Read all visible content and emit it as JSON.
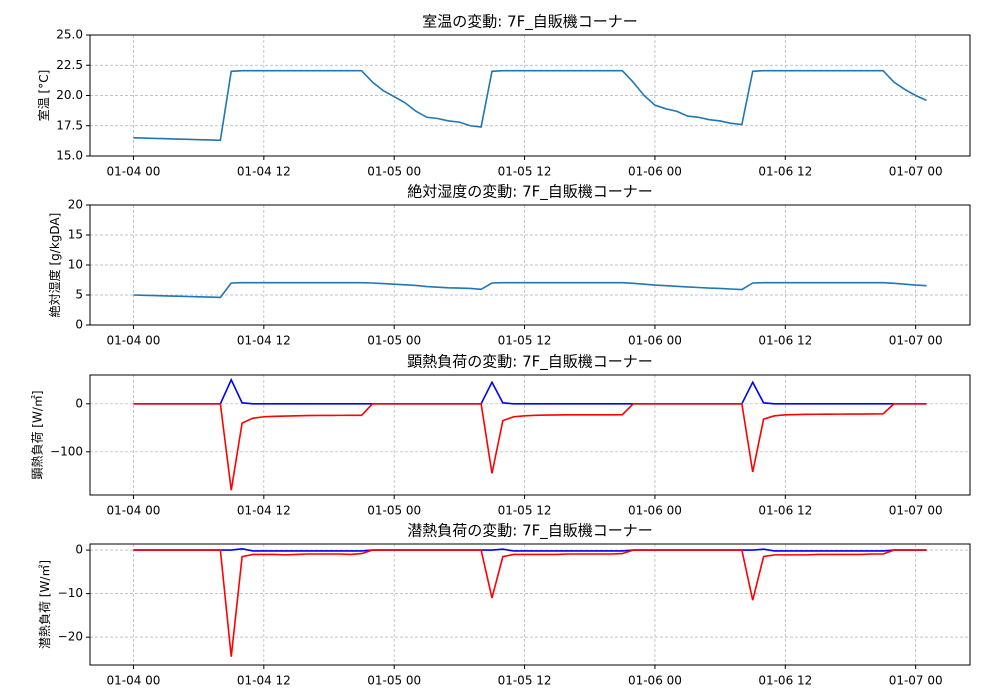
{
  "chart_data": [
    {
      "type": "line",
      "title": "室温の変動: 7F_自販機コーナー",
      "ylabel": "室温 [°C]",
      "x": [
        "01-04 00",
        "01-04 01",
        "01-04 02",
        "01-04 03",
        "01-04 04",
        "01-04 05",
        "01-04 06",
        "01-04 07",
        "01-04 08",
        "01-04 09",
        "01-04 10",
        "01-04 11",
        "01-04 12",
        "01-04 13",
        "01-04 14",
        "01-04 15",
        "01-04 16",
        "01-04 17",
        "01-04 18",
        "01-04 19",
        "01-04 20",
        "01-04 21",
        "01-04 22",
        "01-04 23",
        "01-05 00",
        "01-05 01",
        "01-05 02",
        "01-05 03",
        "01-05 04",
        "01-05 05",
        "01-05 06",
        "01-05 07",
        "01-05 08",
        "01-05 09",
        "01-05 10",
        "01-05 11",
        "01-05 12",
        "01-05 13",
        "01-05 14",
        "01-05 15",
        "01-05 16",
        "01-05 17",
        "01-05 18",
        "01-05 19",
        "01-05 20",
        "01-05 21",
        "01-05 22",
        "01-05 23",
        "01-06 00",
        "01-06 01",
        "01-06 02",
        "01-06 03",
        "01-06 04",
        "01-06 05",
        "01-06 06",
        "01-06 07",
        "01-06 08",
        "01-06 09",
        "01-06 10",
        "01-06 11",
        "01-06 12",
        "01-06 13",
        "01-06 14",
        "01-06 15",
        "01-06 16",
        "01-06 17",
        "01-06 18",
        "01-06 19",
        "01-06 20",
        "01-06 21",
        "01-06 22",
        "01-06 23",
        "01-07 00",
        "01-07 01"
      ],
      "series": [
        {
          "color": "#1f77b4",
          "values": [
            16.5,
            16.48,
            16.45,
            16.43,
            16.4,
            16.38,
            16.35,
            16.33,
            16.3,
            22.0,
            22.05,
            22.05,
            22.05,
            22.05,
            22.05,
            22.05,
            22.05,
            22.05,
            22.05,
            22.05,
            22.05,
            22.05,
            21.1,
            20.4,
            19.9,
            19.4,
            18.7,
            18.2,
            18.1,
            17.9,
            17.8,
            17.5,
            17.4,
            22.0,
            22.05,
            22.05,
            22.05,
            22.05,
            22.05,
            22.05,
            22.05,
            22.05,
            22.05,
            22.05,
            22.05,
            22.05,
            21.1,
            20.0,
            19.2,
            18.9,
            18.7,
            18.3,
            18.2,
            18.0,
            17.9,
            17.7,
            17.6,
            22.0,
            22.05,
            22.05,
            22.05,
            22.05,
            22.05,
            22.05,
            22.05,
            22.05,
            22.05,
            22.05,
            22.05,
            22.05,
            21.1,
            20.5,
            20.0,
            19.6
          ]
        }
      ],
      "xlim": [
        "01-03 20",
        "01-07 05"
      ],
      "xticks": [
        "01-04 00",
        "01-04 12",
        "01-05 00",
        "01-05 12",
        "01-06 00",
        "01-06 12",
        "01-07 00"
      ],
      "ylim": [
        15,
        25
      ],
      "yticks": [
        {
          "value": 15,
          "label": "15.0"
        },
        {
          "value": 17.5,
          "label": "17.5"
        },
        {
          "value": 20,
          "label": "20.0"
        },
        {
          "value": 22.5,
          "label": "22.5"
        },
        {
          "value": 25,
          "label": "25.0"
        }
      ],
      "grid": true
    },
    {
      "type": "line",
      "title": "絶対湿度の変動: 7F_自販機コーナー",
      "ylabel": "絶対湿度 [g/kgDA]",
      "x": [
        "01-04 00",
        "01-04 01",
        "01-04 02",
        "01-04 03",
        "01-04 04",
        "01-04 05",
        "01-04 06",
        "01-04 07",
        "01-04 08",
        "01-04 09",
        "01-04 10",
        "01-04 11",
        "01-04 12",
        "01-04 13",
        "01-04 14",
        "01-04 15",
        "01-04 16",
        "01-04 17",
        "01-04 18",
        "01-04 19",
        "01-04 20",
        "01-04 21",
        "01-04 22",
        "01-04 23",
        "01-05 00",
        "01-05 01",
        "01-05 02",
        "01-05 03",
        "01-05 04",
        "01-05 05",
        "01-05 06",
        "01-05 07",
        "01-05 08",
        "01-05 09",
        "01-05 10",
        "01-05 11",
        "01-05 12",
        "01-05 13",
        "01-05 14",
        "01-05 15",
        "01-05 16",
        "01-05 17",
        "01-05 18",
        "01-05 19",
        "01-05 20",
        "01-05 21",
        "01-05 22",
        "01-05 23",
        "01-06 00",
        "01-06 01",
        "01-06 02",
        "01-06 03",
        "01-06 04",
        "01-06 05",
        "01-06 06",
        "01-06 07",
        "01-06 08",
        "01-06 09",
        "01-06 10",
        "01-06 11",
        "01-06 12",
        "01-06 13",
        "01-06 14",
        "01-06 15",
        "01-06 16",
        "01-06 17",
        "01-06 18",
        "01-06 19",
        "01-06 20",
        "01-06 21",
        "01-06 22",
        "01-06 23",
        "01-07 00",
        "01-07 01"
      ],
      "series": [
        {
          "color": "#1f77b4",
          "values": [
            5.0,
            4.95,
            4.9,
            4.85,
            4.8,
            4.75,
            4.7,
            4.65,
            4.6,
            7.0,
            7.05,
            7.05,
            7.05,
            7.05,
            7.05,
            7.05,
            7.05,
            7.05,
            7.05,
            7.05,
            7.05,
            7.05,
            7.0,
            6.9,
            6.8,
            6.7,
            6.6,
            6.4,
            6.3,
            6.2,
            6.15,
            6.1,
            5.95,
            7.0,
            7.05,
            7.05,
            7.05,
            7.05,
            7.05,
            7.05,
            7.05,
            7.05,
            7.05,
            7.05,
            7.05,
            7.05,
            6.95,
            6.8,
            6.65,
            6.55,
            6.45,
            6.35,
            6.25,
            6.15,
            6.1,
            6.0,
            5.9,
            7.0,
            7.05,
            7.05,
            7.05,
            7.05,
            7.05,
            7.05,
            7.05,
            7.05,
            7.05,
            7.05,
            7.05,
            7.05,
            6.95,
            6.8,
            6.65,
            6.55
          ]
        }
      ],
      "xlim": [
        "01-03 20",
        "01-07 05"
      ],
      "xticks": [
        "01-04 00",
        "01-04 12",
        "01-05 00",
        "01-05 12",
        "01-06 00",
        "01-06 12",
        "01-07 00"
      ],
      "ylim": [
        0,
        20
      ],
      "yticks": [
        0,
        5,
        10,
        15,
        20
      ],
      "grid": true
    },
    {
      "type": "line",
      "title": "顕熱負荷の変動: 7F_自販機コーナー",
      "ylabel": "顕熱負荷 [W/㎡]",
      "x": [
        "01-04 00",
        "01-04 01",
        "01-04 02",
        "01-04 03",
        "01-04 04",
        "01-04 05",
        "01-04 06",
        "01-04 07",
        "01-04 08",
        "01-04 09",
        "01-04 10",
        "01-04 11",
        "01-04 12",
        "01-04 13",
        "01-04 14",
        "01-04 15",
        "01-04 16",
        "01-04 17",
        "01-04 18",
        "01-04 19",
        "01-04 20",
        "01-04 21",
        "01-04 22",
        "01-04 23",
        "01-05 00",
        "01-05 01",
        "01-05 02",
        "01-05 03",
        "01-05 04",
        "01-05 05",
        "01-05 06",
        "01-05 07",
        "01-05 08",
        "01-05 09",
        "01-05 10",
        "01-05 11",
        "01-05 12",
        "01-05 13",
        "01-05 14",
        "01-05 15",
        "01-05 16",
        "01-05 17",
        "01-05 18",
        "01-05 19",
        "01-05 20",
        "01-05 21",
        "01-05 22",
        "01-05 23",
        "01-06 00",
        "01-06 01",
        "01-06 02",
        "01-06 03",
        "01-06 04",
        "01-06 05",
        "01-06 06",
        "01-06 07",
        "01-06 08",
        "01-06 09",
        "01-06 10",
        "01-06 11",
        "01-06 12",
        "01-06 13",
        "01-06 14",
        "01-06 15",
        "01-06 16",
        "01-06 17",
        "01-06 18",
        "01-06 19",
        "01-06 20",
        "01-06 21",
        "01-06 22",
        "01-06 23",
        "01-07 00",
        "01-07 01"
      ],
      "series": [
        {
          "color": "#0000ff",
          "values": [
            0,
            0,
            0,
            0,
            0,
            0,
            0,
            0,
            0,
            50,
            2,
            0,
            0,
            0,
            0,
            0,
            0,
            0,
            0,
            0,
            0,
            0,
            0,
            0,
            0,
            0,
            0,
            0,
            0,
            0,
            0,
            0,
            0,
            45,
            2,
            0,
            0,
            0,
            0,
            0,
            0,
            0,
            0,
            0,
            0,
            0,
            0,
            0,
            0,
            0,
            0,
            0,
            0,
            0,
            0,
            0,
            0,
            45,
            2,
            0,
            0,
            0,
            0,
            0,
            0,
            0,
            0,
            0,
            0,
            0,
            0,
            0,
            0,
            0
          ]
        },
        {
          "color": "#ff0000",
          "values": [
            0,
            0,
            0,
            0,
            0,
            0,
            0,
            0,
            0,
            -180,
            -40,
            -30,
            -27,
            -26,
            -25.5,
            -25,
            -24.5,
            -24.3,
            -24.2,
            -24.1,
            -24,
            -24,
            0,
            0,
            0,
            0,
            0,
            0,
            0,
            0,
            0,
            0,
            0,
            -145,
            -35,
            -27,
            -25,
            -24,
            -23.5,
            -23.2,
            -23,
            -23,
            -23,
            -23,
            -23,
            -22.8,
            0,
            0,
            0,
            0,
            0,
            0,
            0,
            0,
            0,
            0,
            0,
            -142,
            -32,
            -25,
            -23,
            -22.5,
            -22,
            -21.8,
            -21.6,
            -21.5,
            -21.4,
            -21.3,
            -21.2,
            -21,
            0,
            0,
            0,
            0
          ]
        }
      ],
      "xlim": [
        "01-03 20",
        "01-07 05"
      ],
      "xticks": [
        "01-04 00",
        "01-04 12",
        "01-05 00",
        "01-05 12",
        "01-06 00",
        "01-06 12",
        "01-07 00"
      ],
      "ylim": [
        -190,
        60
      ],
      "yticks": [
        {
          "value": -100,
          "label": "−100"
        },
        0
      ],
      "grid": true
    },
    {
      "type": "line",
      "title": "潜熱負荷の変動: 7F_自販機コーナー",
      "ylabel": "潜熱負荷 [W/㎡]",
      "x": [
        "01-04 00",
        "01-04 01",
        "01-04 02",
        "01-04 03",
        "01-04 04",
        "01-04 05",
        "01-04 06",
        "01-04 07",
        "01-04 08",
        "01-04 09",
        "01-04 10",
        "01-04 11",
        "01-04 12",
        "01-04 13",
        "01-04 14",
        "01-04 15",
        "01-04 16",
        "01-04 17",
        "01-04 18",
        "01-04 19",
        "01-04 20",
        "01-04 21",
        "01-04 22",
        "01-04 23",
        "01-05 00",
        "01-05 01",
        "01-05 02",
        "01-05 03",
        "01-05 04",
        "01-05 05",
        "01-05 06",
        "01-05 07",
        "01-05 08",
        "01-05 09",
        "01-05 10",
        "01-05 11",
        "01-05 12",
        "01-05 13",
        "01-05 14",
        "01-05 15",
        "01-05 16",
        "01-05 17",
        "01-05 18",
        "01-05 19",
        "01-05 20",
        "01-05 21",
        "01-05 22",
        "01-05 23",
        "01-06 00",
        "01-06 01",
        "01-06 02",
        "01-06 03",
        "01-06 04",
        "01-06 05",
        "01-06 06",
        "01-06 07",
        "01-06 08",
        "01-06 09",
        "01-06 10",
        "01-06 11",
        "01-06 12",
        "01-06 13",
        "01-06 14",
        "01-06 15",
        "01-06 16",
        "01-06 17",
        "01-06 18",
        "01-06 19",
        "01-06 20",
        "01-06 21",
        "01-06 22",
        "01-06 23",
        "01-07 00",
        "01-07 01"
      ],
      "series": [
        {
          "color": "#0000ff",
          "values": [
            0,
            0,
            0,
            0,
            0,
            0,
            0,
            0,
            0,
            0,
            0.3,
            -0.2,
            -0.2,
            -0.2,
            -0.2,
            -0.2,
            -0.2,
            -0.2,
            -0.2,
            -0.2,
            -0.2,
            -0.2,
            0,
            0,
            0,
            0,
            0,
            0,
            0,
            0,
            0,
            0,
            0,
            0,
            0.2,
            -0.2,
            -0.2,
            -0.2,
            -0.2,
            -0.2,
            -0.2,
            -0.2,
            -0.2,
            -0.2,
            -0.2,
            -0.2,
            0,
            0,
            0,
            0,
            0,
            0,
            0,
            0,
            0,
            0,
            0,
            0,
            0.2,
            -0.2,
            -0.2,
            -0.2,
            -0.2,
            -0.2,
            -0.2,
            -0.2,
            -0.2,
            -0.2,
            -0.2,
            -0.2,
            0,
            0,
            0,
            0
          ]
        },
        {
          "color": "#ff0000",
          "values": [
            0,
            0,
            0,
            0,
            0,
            0,
            0,
            0,
            0,
            -24.5,
            -1.5,
            -1.0,
            -1.0,
            -1.0,
            -1.1,
            -1.0,
            -0.9,
            -0.9,
            -0.9,
            -0.9,
            -1.0,
            -0.8,
            0,
            0,
            0,
            0,
            0,
            0,
            0,
            0,
            0,
            0,
            0,
            -11,
            -1.5,
            -1.0,
            -1.0,
            -1.0,
            -1.0,
            -1.0,
            -0.9,
            -0.9,
            -0.9,
            -0.9,
            -0.9,
            -0.8,
            0,
            0,
            0,
            0,
            0,
            0,
            0,
            0,
            0,
            0,
            0,
            -11.5,
            -1.5,
            -1.1,
            -1.1,
            -1.1,
            -1.1,
            -1.0,
            -1.0,
            -1.0,
            -1.0,
            -1.0,
            -0.9,
            -0.9,
            0,
            0,
            0,
            0
          ]
        }
      ],
      "xlim": [
        "01-03 20",
        "01-07 05"
      ],
      "xticks": [
        "01-04 00",
        "01-04 12",
        "01-05 00",
        "01-05 12",
        "01-06 00",
        "01-06 12",
        "01-07 00"
      ],
      "ylim": [
        -26.4,
        1.4
      ],
      "yticks": [
        {
          "value": -20,
          "label": "−20"
        },
        {
          "value": -10,
          "label": "−10"
        },
        0
      ],
      "grid": true
    }
  ]
}
